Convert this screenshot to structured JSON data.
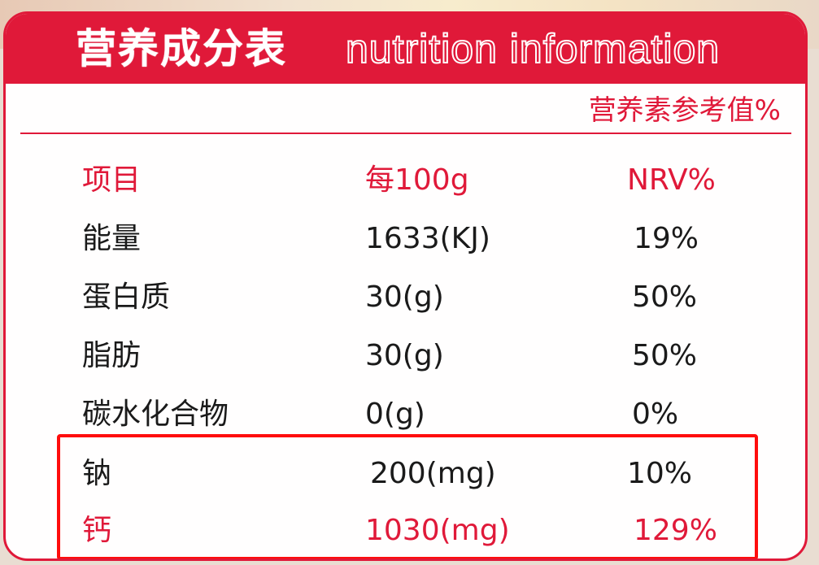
{
  "header": {
    "title_cn": "营养成分表",
    "title_en": "nutrition information"
  },
  "reference_label": "营养素参考值%",
  "table": {
    "columns": [
      "项目",
      "每100g",
      "NRV%"
    ],
    "rows": [
      {
        "item": "能量",
        "per100g": "1633(KJ)",
        "nrv": "19%"
      },
      {
        "item": "蛋白质",
        "per100g": "30(g)",
        "nrv": "50%"
      },
      {
        "item": "脂肪",
        "per100g": "30(g)",
        "nrv": "50%"
      },
      {
        "item": "碳水化合物",
        "per100g": "0(g)",
        "nrv": "0%"
      },
      {
        "item": "钠",
        "per100g": "200(mg)",
        "nrv": "10%"
      },
      {
        "item": "钙",
        "per100g": "1030(mg)",
        "nrv": "129%"
      }
    ]
  },
  "colors": {
    "brand_red": "#e01939",
    "highlight_box": "#ff0d0d",
    "text": "#1a1a1a"
  }
}
